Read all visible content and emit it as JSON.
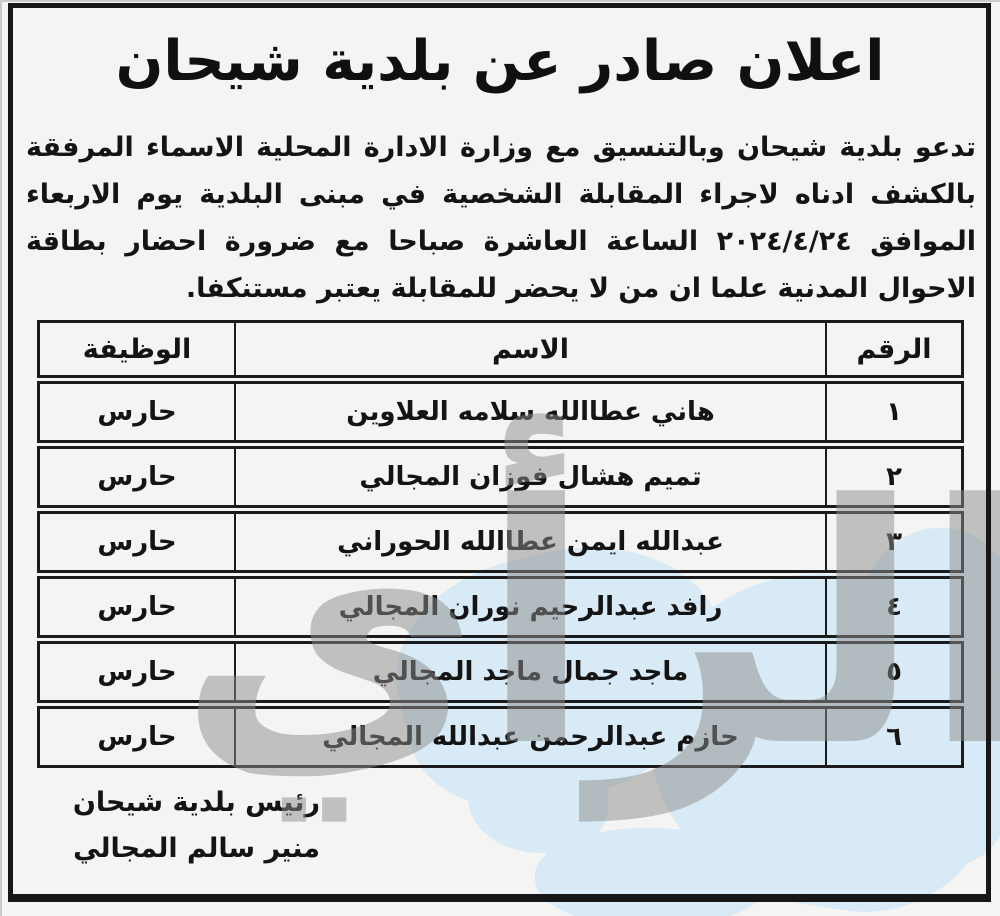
{
  "page": {
    "title": "اعلان صادر عن بلدية شيحان",
    "body_lines": [
      "تدعو بلدية شيحان وبالتنسيق مع وزارة الادارة المحلية الاسماء المرفقة",
      "بالكشف ادناه لاجراء المقابلة الشخصية في مبنى البلدية يوم الاربعاء",
      "الموافق ٢٠٢٤/٤/٢٤ الساعة العاشرة صباحا مع ضرورة احضار بطاقة",
      "الاحوال المدنية علما ان من لا يحضر للمقابلة يعتبر مستنكفا."
    ]
  },
  "table": {
    "headers": {
      "number": "الرقم",
      "name": "الاسم",
      "job": "الوظيفة"
    },
    "rows": [
      {
        "number": "١",
        "name": "هاني عطاالله سلامه العلاوين",
        "job": "حارس"
      },
      {
        "number": "٢",
        "name": "تميم هشال فوزان المجالي",
        "job": "حارس"
      },
      {
        "number": "٣",
        "name": "عبدالله ايمن عطاالله الحوراني",
        "job": "حارس"
      },
      {
        "number": "٤",
        "name": "رافد عبدالرحيم نوران المجالي",
        "job": "حارس"
      },
      {
        "number": "٥",
        "name": "ماجد جمال ماجد المجالي",
        "job": "حارس"
      },
      {
        "number": "٦",
        "name": "حازم عبدالرحمن عبدالله المجالي",
        "job": "حارس"
      }
    ]
  },
  "signature": {
    "title": "رئيس بلدية شيحان",
    "name": "منير سالم المجالي"
  },
  "watermark": {
    "text": "الرأي"
  },
  "colors": {
    "ink": "#171717",
    "paper": "#f4f4f2",
    "watermark_gray": "#8d8d8d",
    "watermark_blue": "#d8eaf5"
  }
}
